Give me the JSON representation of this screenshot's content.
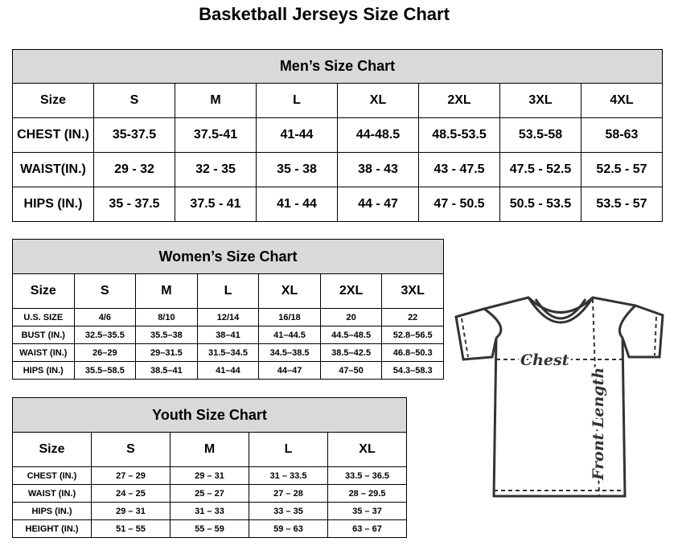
{
  "title": "Basketball Jerseys Size Chart",
  "mens": {
    "heading": "Men’s Size Chart",
    "columns": [
      "Size",
      "S",
      "M",
      "L",
      "XL",
      "2XL",
      "3XL",
      "4XL"
    ],
    "rows": [
      [
        "CHEST (IN.)",
        "35-37.5",
        "37.5-41",
        "41-44",
        "44-48.5",
        "48.5-53.5",
        "53.5-58",
        "58-63"
      ],
      [
        "WAIST(IN.)",
        "29 - 32",
        "32 - 35",
        "35 - 38",
        "38 - 43",
        "43 - 47.5",
        "47.5 - 52.5",
        "52.5 - 57"
      ],
      [
        "HIPS (IN.)",
        "35 - 37.5",
        "37.5 - 41",
        "41 - 44",
        "44 - 47",
        "47 - 50.5",
        "50.5 - 53.5",
        "53.5 - 57"
      ]
    ]
  },
  "womens": {
    "heading": "Women’s Size Chart",
    "columns": [
      "Size",
      "S",
      "M",
      "L",
      "XL",
      "2XL",
      "3XL"
    ],
    "rows": [
      [
        "U.S.  SIZE",
        "4/6",
        "8/10",
        "12/14",
        "16/18",
        "20",
        "22"
      ],
      [
        "BUST  (IN.)",
        "32.5–35.5",
        "35.5–38",
        "38–41",
        "41–44.5",
        "44.5–48.5",
        "52.8–56.5"
      ],
      [
        "WAIST  (IN.)",
        "26–29",
        "29–31.5",
        "31.5–34.5",
        "34.5–38.5",
        "38.5–42.5",
        "46.8–50.3"
      ],
      [
        "HIPS  (IN.)",
        "35.5–58.5",
        "38.5–41",
        "41–44",
        "44–47",
        "47–50",
        "54.3–58.3"
      ]
    ]
  },
  "youth": {
    "heading": "Youth Size Chart",
    "columns": [
      "Size",
      "S",
      "M",
      "L",
      "XL"
    ],
    "rows": [
      [
        "CHEST  (IN.)",
        "27  –  29",
        "29  –  31",
        "31  –  33.5",
        "33.5  –  36.5"
      ],
      [
        "WAIST  (IN.)",
        "24  –  25",
        "25  –  27",
        "27  –  28",
        "28  –  29.5"
      ],
      [
        "HIPS  (IN.)",
        "29  –  31",
        "31  –  33",
        "33  –  35",
        "35  –  37"
      ],
      [
        "HEIGHT  (IN.)",
        "51  –  55",
        "55  –  59",
        "59  –  63",
        "63  –  67"
      ]
    ]
  },
  "diagram": {
    "chest_label": "Chest",
    "length_label": "Front Length",
    "icon": "t-shirt-icon"
  }
}
